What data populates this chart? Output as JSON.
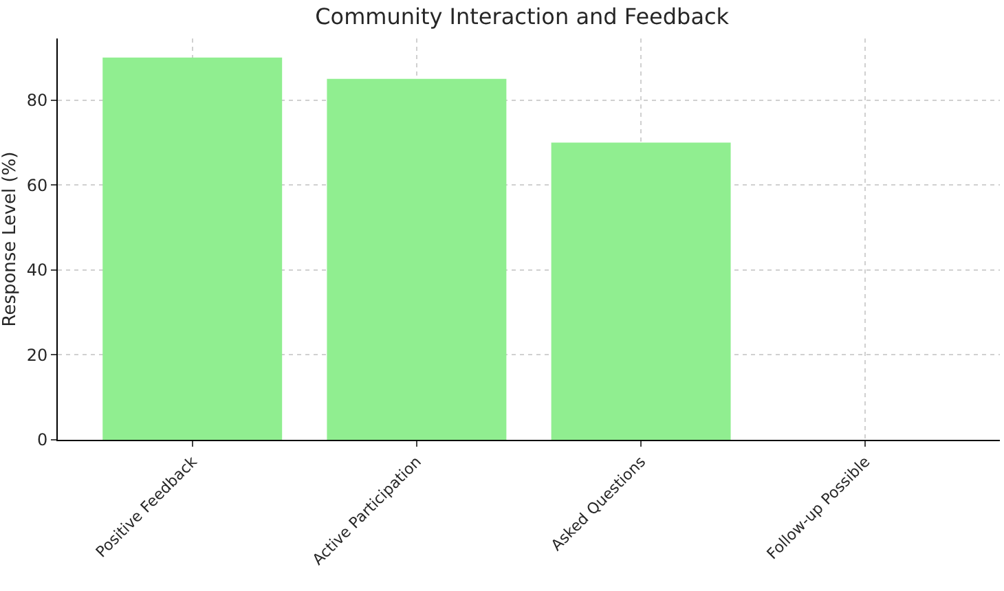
{
  "chart_data": {
    "type": "bar",
    "title": "Community Interaction and Feedback",
    "ylabel": "Response Level (%)",
    "categories": [
      "Positive Feedback",
      "Active Participation",
      "Asked Questions",
      "Follow-up Possible"
    ],
    "values": [
      90,
      85,
      70,
      0
    ],
    "color": "#90ee90",
    "ylim": [
      0,
      94.5
    ],
    "yticks": [
      0,
      20,
      40,
      60,
      80
    ],
    "grid": true
  }
}
